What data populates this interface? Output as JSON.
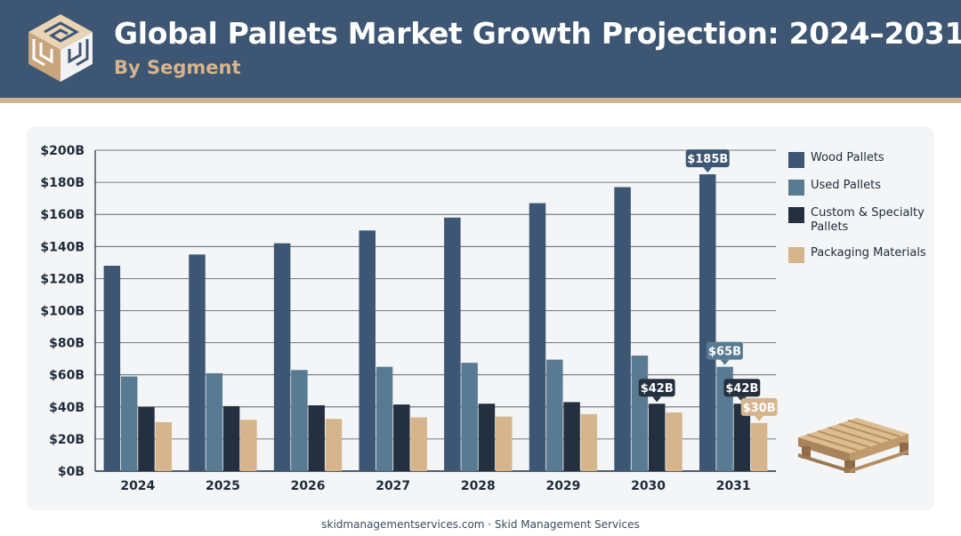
{
  "header": {
    "title": "Global Pallets Market Growth Projection: 2024–2031",
    "subtitle": "By Segment"
  },
  "footer": {
    "text": "skidmanagementservices.com · Skid Management Services"
  },
  "icons": {
    "logo": "maze-cube-logo-icon",
    "pallet": "wooden-pallet-icon"
  },
  "chart_data": {
    "type": "bar",
    "title": "",
    "xlabel": "",
    "ylabel": "",
    "ylim": [
      0,
      200
    ],
    "yticks": [
      0,
      20,
      40,
      60,
      80,
      100,
      120,
      140,
      160,
      180,
      200
    ],
    "y_tick_prefix": "$",
    "y_tick_suffix": "B",
    "grid": true,
    "legend_position": "right",
    "categories": [
      "2024",
      "2025",
      "2026",
      "2027",
      "2028",
      "2029",
      "2030",
      "2031"
    ],
    "series": [
      {
        "name": "Wood Pallets",
        "color": "#3d5674",
        "values": [
          128,
          135,
          142,
          150,
          158,
          167,
          177,
          185
        ]
      },
      {
        "name": "Used Pallets",
        "color": "#587a92",
        "values": [
          59,
          61,
          63,
          65,
          67.5,
          69.5,
          72,
          65
        ]
      },
      {
        "name": "Custom & Specialty Pallets",
        "color": "#24303f",
        "values": [
          40,
          40.5,
          41,
          41.5,
          42,
          43,
          42,
          42
        ]
      },
      {
        "name": "Packaging Materials",
        "color": "#d6b48c",
        "values": [
          30.5,
          32,
          32.5,
          33.5,
          34,
          35.5,
          36.5,
          30
        ]
      }
    ],
    "annotations": [
      {
        "series": 0,
        "category": "2031",
        "label": "$185B"
      },
      {
        "series": 1,
        "category": "2031",
        "label": "$65B"
      },
      {
        "series": 2,
        "category": "2030",
        "label": "$42B"
      },
      {
        "series": 2,
        "category": "2031",
        "label": "$42B"
      },
      {
        "series": 3,
        "category": "2031",
        "label": "$30B"
      }
    ]
  }
}
